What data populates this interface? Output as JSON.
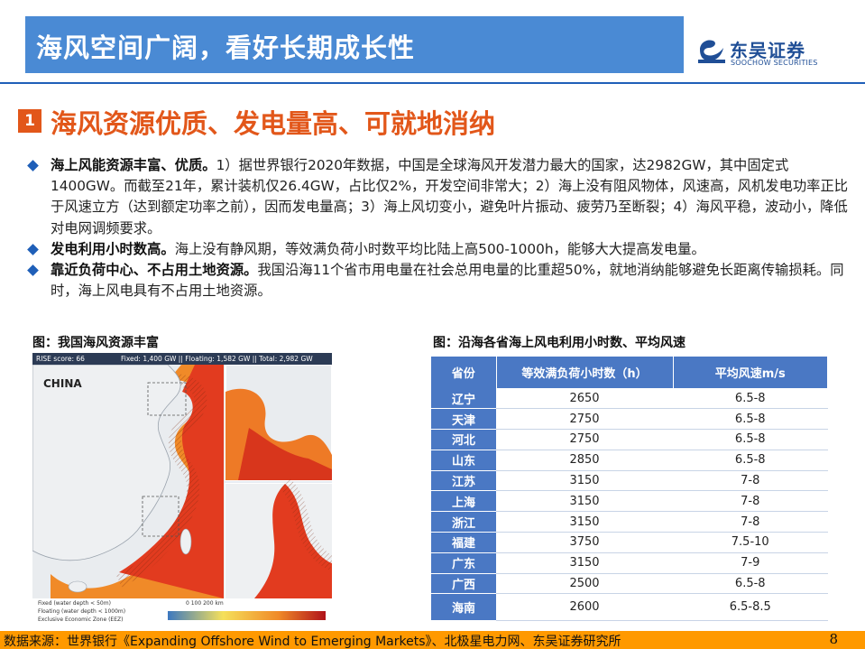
{
  "header": {
    "title": "海风空间广阔，看好长期成长性",
    "logo_cn": "东吴证券",
    "logo_en": "SOOCHOW SECURITIES"
  },
  "section": {
    "number": "1",
    "title": "海风资源优质、发电量高、可就地消纳"
  },
  "bullets": [
    {
      "bold": "海上风能资源丰富、优质。",
      "text": "1）据世界银行2020年数据，中国是全球海风开发潜力最大的国家，达2982GW，其中固定式1400GW。而截至21年，累计装机仅26.4GW，占比仅2%，开发空间非常大；2）海上没有阻风物体，风速高，风机发电功率正比于风速立方（达到额定功率之前），因而发电量高；3）海上风切变小，避免叶片振动、疲劳乃至断裂；4）海风平稳，波动小，降低对电网调频要求。"
    },
    {
      "bold": "发电利用小时数高。",
      "text": "海上没有静风期，等效满负荷小时数平均比陆上高500-1000h，能够大大提高发电量。"
    },
    {
      "bold": "靠近负荷中心、不占用土地资源。",
      "text": "我国沿海11个省市用电量在社会总用电量的比重超50%，就地消纳能够避免长距离传输损耗。同时，海上风电具有不占用土地资源。"
    }
  ],
  "figure_left": {
    "caption": "图：我国海风资源丰富",
    "bar_left": "RISE score: 66",
    "bar_mid": "Fixed: 1,400 GW  || Floating: 1,582 GW  || Total: 2,982 GW",
    "country": "CHINA",
    "legend_fixed": "Fixed (water depth < 50m)",
    "legend_floating": "Floating (water depth < 1000m)",
    "legend_eez": "Exclusive Economic Zone (EEZ)",
    "scale": "0   100  200 km"
  },
  "figure_right": {
    "caption": "图：沿海各省海上风电利用小时数、平均风速"
  },
  "table": {
    "headers": [
      "省份",
      "等效满负荷小时数（h）",
      "平均风速m/s"
    ],
    "rows": [
      {
        "province": "辽宁",
        "hours": "2650",
        "speed": "6.5-8"
      },
      {
        "province": "天津",
        "hours": "2750",
        "speed": "6.5-8"
      },
      {
        "province": "河北",
        "hours": "2750",
        "speed": "6.5-8"
      },
      {
        "province": "山东",
        "hours": "2850",
        "speed": "6.5-8"
      },
      {
        "province": "江苏",
        "hours": "3150",
        "speed": "7-8"
      },
      {
        "province": "上海",
        "hours": "3150",
        "speed": "7-8"
      },
      {
        "province": "浙江",
        "hours": "3150",
        "speed": "7-8"
      },
      {
        "province": "福建",
        "hours": "3750",
        "speed": "7.5-10"
      },
      {
        "province": "广东",
        "hours": "3150",
        "speed": "7-9"
      },
      {
        "province": "广西",
        "hours": "2500",
        "speed": "6.5-8"
      },
      {
        "province": "海南",
        "hours": "2600",
        "speed": "6.5-8.5"
      }
    ]
  },
  "footer": {
    "source": "数据来源：世界银行《Expanding Offshore Wind to Emerging Markets》、北极星电力网、东吴证券研究所",
    "page": "8"
  },
  "colors": {
    "title_bar": "#4a8ad4",
    "accent_orange": "#e2571a",
    "brand_blue": "#1f5fb8",
    "table_header": "#4a78c4",
    "footer": "#ff9900"
  }
}
